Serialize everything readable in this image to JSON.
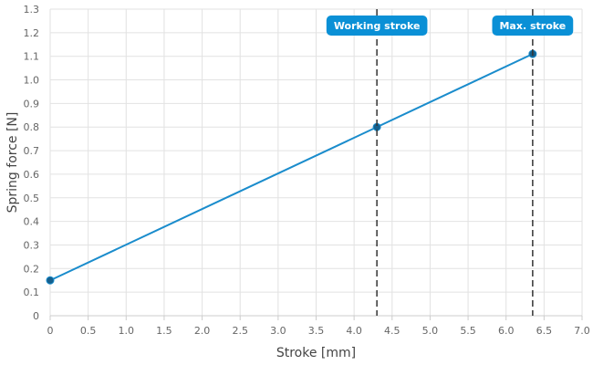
{
  "chart_data": {
    "type": "line",
    "xlabel": "Stroke [mm]",
    "ylabel": "Spring force [N]",
    "xlim": [
      0,
      7.0
    ],
    "ylim": [
      0,
      1.3
    ],
    "grid": true,
    "x_ticks": [
      "0",
      "0.5",
      "1.0",
      "1.5",
      "2.0",
      "2.5",
      "3.0",
      "3.5",
      "4.0",
      "4.5",
      "5.0",
      "5.5",
      "6.0",
      "6.5",
      "7.0"
    ],
    "y_ticks": [
      "0",
      "0.1",
      "0.2",
      "0.3",
      "0.4",
      "0.5",
      "0.6",
      "0.7",
      "0.8",
      "0.9",
      "1.0",
      "1.1",
      "1.2",
      "1.3"
    ],
    "series": [
      {
        "x": [
          0,
          4.3,
          6.35
        ],
        "y": [
          0.15,
          0.8,
          1.11
        ]
      }
    ],
    "markers": [
      {
        "label": "Working stroke",
        "x": 4.3
      },
      {
        "label": "Max. stroke",
        "x": 6.35
      }
    ],
    "colors": {
      "line": "#1a8ccc",
      "point": "#155f8c",
      "marker_label_bg": "#0a90d6",
      "marker_line": "#333333",
      "grid": "#e2e2e2"
    }
  }
}
